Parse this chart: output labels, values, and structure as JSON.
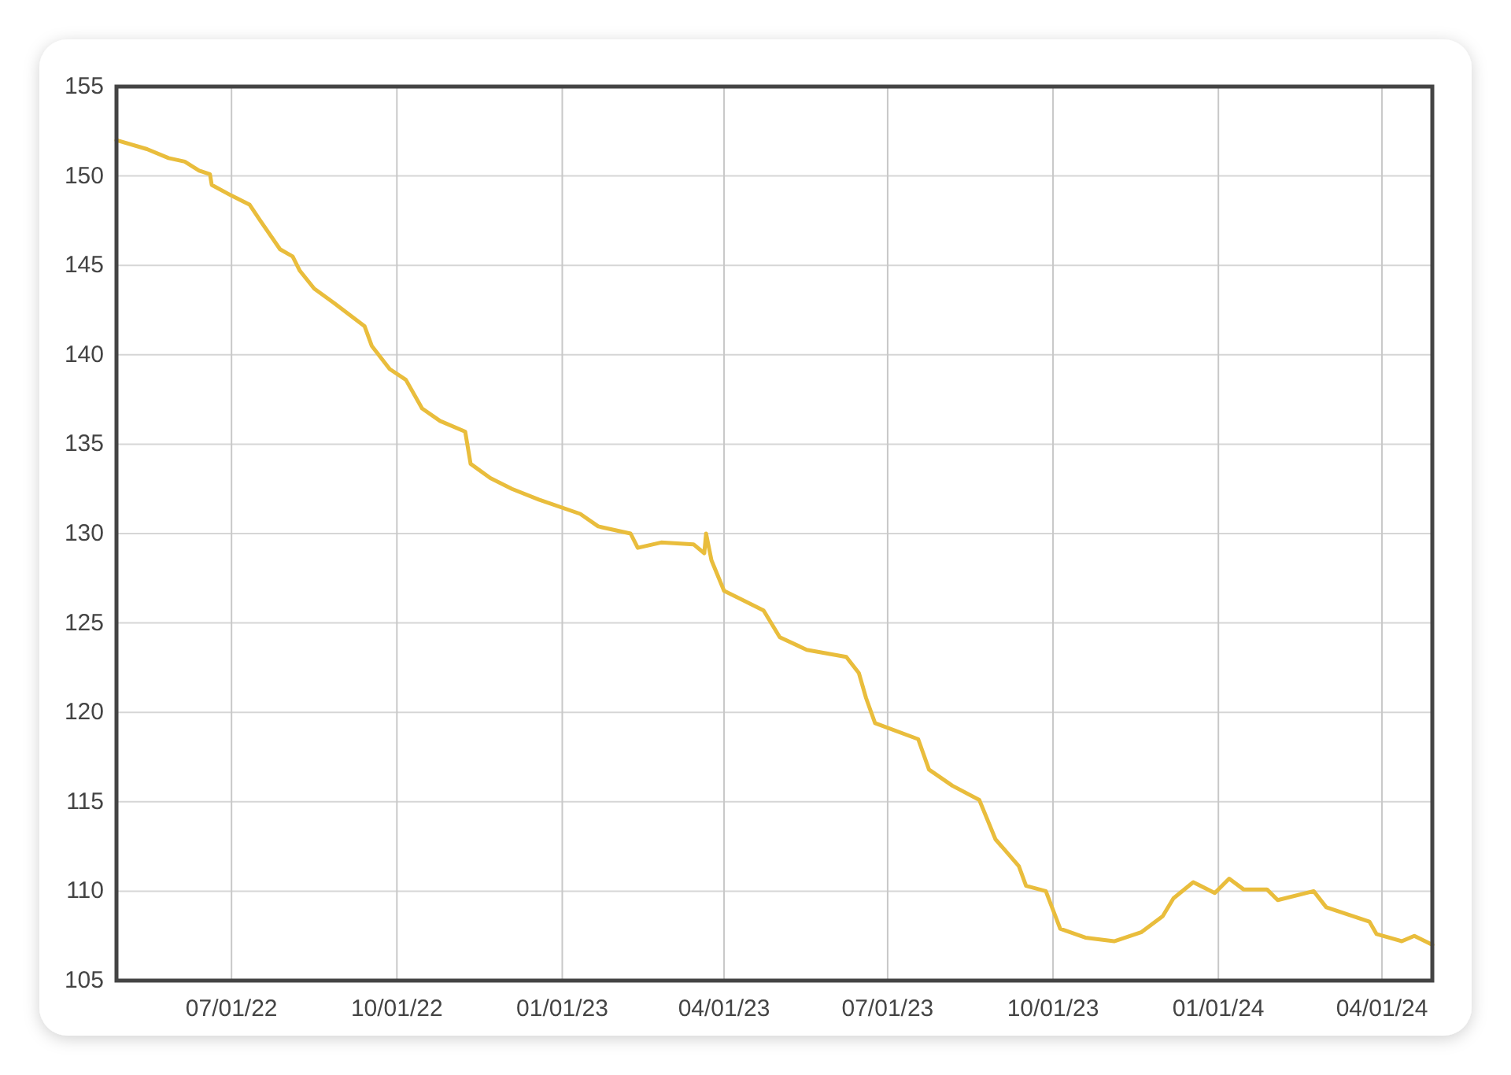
{
  "chart_data": {
    "type": "line",
    "x": [
      "2022-04-28",
      "2022-05-15",
      "2022-05-27",
      "2022-06-05",
      "2022-06-13",
      "2022-06-19",
      "2022-06-20",
      "2022-07-01",
      "2022-07-11",
      "2022-07-17",
      "2022-07-28",
      "2022-08-04",
      "2022-08-08",
      "2022-08-16",
      "2022-08-27",
      "2022-09-13",
      "2022-09-17",
      "2022-09-27",
      "2022-10-06",
      "2022-10-15",
      "2022-10-25",
      "2022-11-08",
      "2022-11-11",
      "2022-11-22",
      "2022-12-04",
      "2022-12-19",
      "2023-01-11",
      "2023-01-21",
      "2023-02-08",
      "2023-02-12",
      "2023-02-25",
      "2023-03-15",
      "2023-03-21",
      "2023-03-22",
      "2023-03-25",
      "2023-04-01",
      "2023-04-23",
      "2023-05-02",
      "2023-05-17",
      "2023-06-08",
      "2023-06-15",
      "2023-06-19",
      "2023-06-24",
      "2023-07-18",
      "2023-07-24",
      "2023-08-06",
      "2023-08-21",
      "2023-08-30",
      "2023-09-12",
      "2023-09-16",
      "2023-09-27",
      "2023-10-05",
      "2023-10-19",
      "2023-11-04",
      "2023-11-19",
      "2023-12-01",
      "2023-12-07",
      "2023-12-18",
      "2023-12-30",
      "2024-01-07",
      "2024-01-15",
      "2024-01-28",
      "2024-02-03",
      "2024-02-23",
      "2024-03-01",
      "2024-03-25",
      "2024-03-29",
      "2024-04-12",
      "2024-04-19",
      "2024-04-29"
    ],
    "series": [
      {
        "color": "#e9bd3c",
        "values": [
          152.0,
          151.5,
          151.0,
          150.8,
          150.3,
          150.1,
          149.5,
          148.9,
          148.4,
          147.5,
          145.9,
          145.5,
          144.7,
          143.7,
          142.9,
          141.6,
          140.5,
          139.2,
          138.6,
          137.0,
          136.3,
          135.7,
          133.9,
          133.1,
          132.5,
          131.9,
          131.1,
          130.4,
          130.0,
          129.2,
          129.5,
          129.4,
          128.9,
          130.0,
          128.5,
          126.8,
          125.7,
          124.2,
          123.5,
          123.1,
          122.2,
          120.8,
          119.4,
          118.5,
          116.8,
          115.9,
          115.1,
          112.9,
          111.4,
          110.3,
          110.0,
          107.9,
          107.4,
          107.2,
          107.7,
          108.6,
          109.6,
          110.5,
          109.9,
          110.7,
          110.1,
          110.1,
          109.5,
          110.0,
          109.1,
          108.3,
          107.6,
          107.2,
          107.5,
          107.0
        ]
      }
    ],
    "xlim": [
      "2022-04-28",
      "2024-04-29"
    ],
    "xticks": [
      {
        "value": "2022-07-01",
        "label": "07/01/22"
      },
      {
        "value": "2022-10-01",
        "label": "10/01/22"
      },
      {
        "value": "2023-01-01",
        "label": "01/01/23"
      },
      {
        "value": "2023-04-01",
        "label": "04/01/23"
      },
      {
        "value": "2023-07-01",
        "label": "07/01/23"
      },
      {
        "value": "2023-10-01",
        "label": "10/01/23"
      },
      {
        "value": "2024-01-01",
        "label": "01/01/24"
      },
      {
        "value": "2024-04-01",
        "label": "04/01/24"
      }
    ],
    "ylim": [
      105,
      155
    ],
    "yticks": [
      105,
      110,
      115,
      120,
      125,
      130,
      135,
      140,
      145,
      150,
      155
    ],
    "grid": true
  }
}
